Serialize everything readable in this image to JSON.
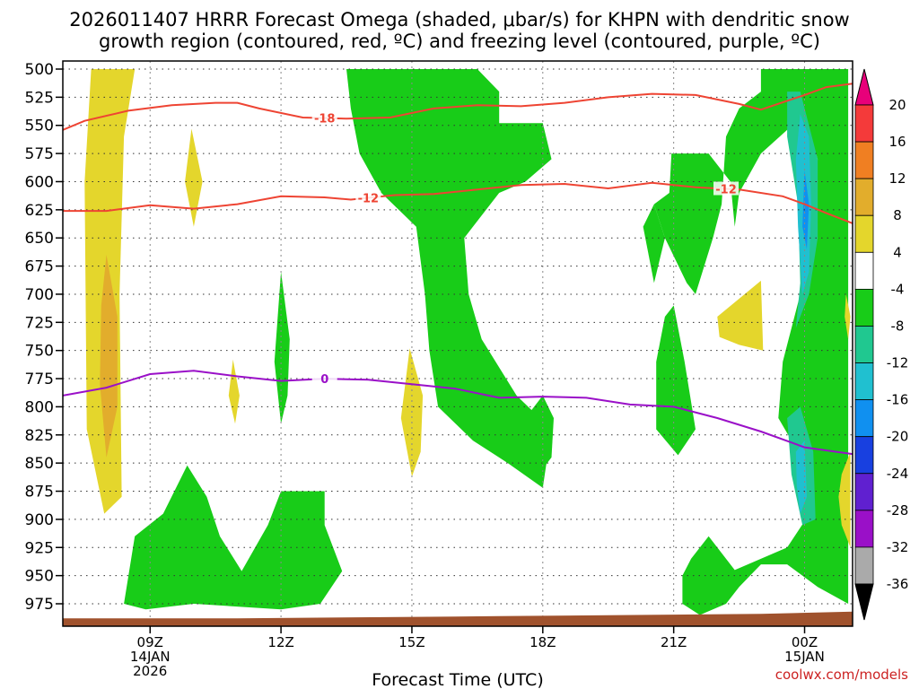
{
  "chart_data": {
    "type": "heatmap",
    "title_line1": "2026011407 HRRR Forecast Omega (shaded, μbar/s) for KHPN with dendritic snow",
    "title_line2": "growth region (contoured, red, ºC) and freezing level (contoured, purple, ºC)",
    "xlabel": "Forecast Time (UTC)",
    "x_range_hours": [
      7,
      25.1
    ],
    "x_ticks": [
      {
        "hour": 9,
        "label": "09Z",
        "sub1": "14JAN",
        "sub2": "2026"
      },
      {
        "hour": 12,
        "label": "12Z",
        "sub1": "",
        "sub2": ""
      },
      {
        "hour": 15,
        "label": "15Z",
        "sub1": "",
        "sub2": ""
      },
      {
        "hour": 18,
        "label": "18Z",
        "sub1": "",
        "sub2": ""
      },
      {
        "hour": 21,
        "label": "21Z",
        "sub1": "",
        "sub2": ""
      },
      {
        "hour": 24,
        "label": "00Z",
        "sub1": "15JAN",
        "sub2": ""
      }
    ],
    "y_levels": [
      500,
      525,
      550,
      575,
      600,
      625,
      650,
      675,
      700,
      725,
      750,
      775,
      800,
      825,
      850,
      875,
      900,
      925,
      950,
      975
    ],
    "y_tick_labels": [
      "500",
      "525",
      "550",
      "575",
      "600",
      "625",
      "650",
      "675",
      "700",
      "725",
      "750",
      "775",
      "800",
      "825",
      "850",
      "875",
      "900",
      "925",
      "950",
      "975"
    ],
    "colorbar": {
      "labels": [
        "20",
        "16",
        "12",
        "8",
        "4",
        "-4",
        "-8",
        "-12",
        "-16",
        "-20",
        "-24",
        "-28",
        "-32",
        "-36"
      ],
      "colors": [
        "#e8007a",
        "#f43a3a",
        "#f07f22",
        "#e2ad2c",
        "#e4d62c",
        "#ffffff",
        "#18cc18",
        "#20c890",
        "#20c0d0",
        "#1090f0",
        "#1840e0",
        "#6020d0",
        "#9a10c8",
        "#aaaaaa",
        "#000000"
      ]
    },
    "omega_regions": [
      {
        "color": "#e4d62c",
        "points": [
          [
            7.65,
            500
          ],
          [
            8.65,
            500
          ],
          [
            8.4,
            560
          ],
          [
            8.3,
            700
          ],
          [
            8.35,
            880
          ],
          [
            7.95,
            895
          ],
          [
            7.55,
            820
          ],
          [
            7.5,
            600
          ]
        ]
      },
      {
        "color": "#e2ad2c",
        "points": [
          [
            8.0,
            665
          ],
          [
            8.25,
            720
          ],
          [
            8.25,
            800
          ],
          [
            8.0,
            845
          ],
          [
            7.85,
            780
          ],
          [
            7.88,
            710
          ]
        ]
      },
      {
        "color": "#e4d62c",
        "points": [
          [
            9.95,
            553
          ],
          [
            10.2,
            600
          ],
          [
            10.0,
            640
          ],
          [
            9.8,
            600
          ]
        ]
      },
      {
        "color": "#e4d62c",
        "points": [
          [
            10.9,
            758
          ],
          [
            11.05,
            790
          ],
          [
            10.95,
            815
          ],
          [
            10.8,
            790
          ]
        ]
      },
      {
        "color": "#18cc18",
        "points": [
          [
            12.0,
            680
          ],
          [
            12.2,
            740
          ],
          [
            12.15,
            790
          ],
          [
            12.0,
            815
          ],
          [
            11.85,
            760
          ]
        ]
      },
      {
        "color": "#e4d62c",
        "points": [
          [
            14.95,
            748
          ],
          [
            15.25,
            790
          ],
          [
            15.2,
            840
          ],
          [
            15.0,
            862
          ],
          [
            14.75,
            810
          ]
        ]
      },
      {
        "color": "#18cc18",
        "points": [
          [
            8.4,
            975
          ],
          [
            8.65,
            915
          ],
          [
            9.3,
            895
          ],
          [
            9.85,
            852
          ],
          [
            10.3,
            880
          ],
          [
            10.6,
            915
          ],
          [
            11.1,
            946
          ],
          [
            11.7,
            905
          ],
          [
            12.0,
            875
          ],
          [
            13.0,
            875
          ],
          [
            13.0,
            905
          ],
          [
            13.4,
            946
          ],
          [
            12.9,
            975
          ],
          [
            12.0,
            980
          ],
          [
            10.0,
            975
          ],
          [
            8.9,
            980
          ]
        ]
      },
      {
        "color": "#18cc18",
        "points": [
          [
            13.5,
            500
          ],
          [
            16.5,
            500
          ],
          [
            17.0,
            520
          ],
          [
            17.0,
            548
          ],
          [
            18.0,
            548
          ],
          [
            18.2,
            580
          ],
          [
            17.6,
            600
          ],
          [
            17.0,
            610
          ],
          [
            16.2,
            650
          ],
          [
            16.3,
            700
          ],
          [
            16.6,
            740
          ],
          [
            17.4,
            790
          ],
          [
            18.2,
            820
          ],
          [
            18.0,
            872
          ],
          [
            17.2,
            850
          ],
          [
            16.4,
            830
          ],
          [
            15.6,
            800
          ],
          [
            15.4,
            750
          ],
          [
            15.3,
            700
          ],
          [
            15.1,
            640
          ],
          [
            14.3,
            610
          ],
          [
            13.8,
            575
          ],
          [
            13.6,
            535
          ]
        ]
      },
      {
        "color": "#18cc18",
        "points": [
          [
            18.0,
            790
          ],
          [
            18.25,
            810
          ],
          [
            18.2,
            845
          ],
          [
            17.9,
            860
          ],
          [
            17.6,
            810
          ]
        ]
      },
      {
        "color": "#18cc18",
        "points": [
          [
            23.0,
            500
          ],
          [
            25.0,
            500
          ],
          [
            25.0,
            975
          ],
          [
            24.3,
            960
          ],
          [
            23.6,
            940
          ],
          [
            23.0,
            940
          ],
          [
            22.5,
            960
          ],
          [
            22.2,
            975
          ],
          [
            21.6,
            985
          ],
          [
            21.2,
            975
          ],
          [
            21.2,
            950
          ],
          [
            21.4,
            935
          ],
          [
            21.8,
            915
          ],
          [
            22.4,
            945
          ],
          [
            23.6,
            925
          ],
          [
            24.2,
            890
          ],
          [
            24.0,
            850
          ],
          [
            23.4,
            810
          ],
          [
            23.5,
            760
          ],
          [
            23.9,
            700
          ],
          [
            24.2,
            640
          ],
          [
            24.3,
            580
          ],
          [
            24.0,
            540
          ],
          [
            23.0,
            575
          ],
          [
            22.5,
            610
          ],
          [
            22.4,
            640
          ],
          [
            22.3,
            600
          ],
          [
            21.8,
            575
          ],
          [
            20.95,
            575
          ],
          [
            20.9,
            610
          ],
          [
            20.55,
            620
          ],
          [
            20.8,
            650
          ],
          [
            21.3,
            690
          ],
          [
            21.5,
            700
          ],
          [
            21.9,
            650
          ],
          [
            22.1,
            620
          ],
          [
            22.2,
            560
          ],
          [
            22.5,
            535
          ],
          [
            23.0,
            520
          ]
        ]
      },
      {
        "color": "#18cc18",
        "points": [
          [
            20.55,
            620
          ],
          [
            20.8,
            650
          ],
          [
            20.55,
            690
          ],
          [
            20.3,
            640
          ]
        ]
      },
      {
        "color": "#18cc18",
        "points": [
          [
            21.0,
            710
          ],
          [
            21.25,
            760
          ],
          [
            21.5,
            820
          ],
          [
            21.1,
            843
          ],
          [
            20.6,
            820
          ],
          [
            20.6,
            760
          ],
          [
            20.8,
            720
          ]
        ]
      },
      {
        "color": "#e4d62c",
        "points": [
          [
            22.0,
            720
          ],
          [
            23.0,
            688
          ],
          [
            23.05,
            750
          ],
          [
            22.5,
            745
          ],
          [
            22.05,
            738
          ]
        ]
      },
      {
        "color": "#20c890",
        "points": [
          [
            23.6,
            520
          ],
          [
            23.9,
            520
          ],
          [
            24.3,
            580
          ],
          [
            24.3,
            650
          ],
          [
            24.1,
            700
          ],
          [
            23.8,
            730
          ],
          [
            23.9,
            690
          ],
          [
            23.85,
            620
          ],
          [
            23.6,
            560
          ]
        ]
      },
      {
        "color": "#20c0d0",
        "points": [
          [
            23.9,
            540
          ],
          [
            24.1,
            560
          ],
          [
            24.15,
            620
          ],
          [
            24.1,
            680
          ],
          [
            23.95,
            700
          ],
          [
            23.85,
            640
          ],
          [
            23.8,
            580
          ]
        ]
      },
      {
        "color": "#1090f0",
        "points": [
          [
            24.0,
            590
          ],
          [
            24.1,
            620
          ],
          [
            24.05,
            660
          ],
          [
            23.95,
            640
          ]
        ]
      },
      {
        "color": "#20c890",
        "points": [
          [
            23.6,
            810
          ],
          [
            23.9,
            800
          ],
          [
            24.2,
            840
          ],
          [
            24.25,
            900
          ],
          [
            23.95,
            905
          ],
          [
            23.7,
            860
          ]
        ]
      },
      {
        "color": "#20c0d0",
        "points": [
          [
            23.8,
            840
          ],
          [
            24.0,
            830
          ],
          [
            24.05,
            880
          ],
          [
            23.9,
            895
          ],
          [
            23.82,
            870
          ]
        ]
      },
      {
        "color": "#e4d62c",
        "points": [
          [
            24.95,
            700
          ],
          [
            25.05,
            720
          ],
          [
            25.0,
            740
          ],
          [
            24.92,
            720
          ]
        ]
      },
      {
        "color": "#e4d62c",
        "points": [
          [
            24.85,
            860
          ],
          [
            25.05,
            840
          ],
          [
            25.05,
            925
          ],
          [
            24.85,
            905
          ],
          [
            24.78,
            880
          ]
        ]
      }
    ],
    "contours": [
      {
        "name": "-18",
        "color": "#ee4433",
        "label": "-18",
        "label_hour": 13.0,
        "points": [
          [
            7.0,
            554
          ],
          [
            7.5,
            546
          ],
          [
            8.5,
            537
          ],
          [
            9.5,
            532
          ],
          [
            10.5,
            530
          ],
          [
            11.0,
            530
          ],
          [
            11.5,
            535
          ],
          [
            12.5,
            543
          ],
          [
            13.5,
            544
          ],
          [
            14.5,
            543
          ],
          [
            15.5,
            535
          ],
          [
            16.5,
            532
          ],
          [
            17.5,
            533
          ],
          [
            18.5,
            530
          ],
          [
            19.5,
            525
          ],
          [
            20.5,
            522
          ],
          [
            21.5,
            523
          ],
          [
            22.5,
            531
          ],
          [
            23.0,
            536
          ],
          [
            24.0,
            523
          ],
          [
            24.5,
            516
          ],
          [
            25.1,
            513
          ]
        ]
      },
      {
        "name": "-12",
        "color": "#ee4433",
        "label": "-12",
        "label_hour": 14.0,
        "points": [
          [
            7.0,
            626
          ],
          [
            8.0,
            626
          ],
          [
            9.0,
            621
          ],
          [
            10.0,
            624
          ],
          [
            11.0,
            620
          ],
          [
            12.0,
            613
          ],
          [
            13.0,
            614
          ],
          [
            13.6,
            616
          ],
          [
            14.6,
            612
          ],
          [
            15.5,
            611
          ],
          [
            16.5,
            607
          ],
          [
            17.5,
            603
          ],
          [
            18.5,
            602
          ],
          [
            19.5,
            606
          ],
          [
            20.5,
            601
          ],
          [
            21.5,
            605
          ],
          [
            22.5,
            607
          ],
          [
            23.5,
            613
          ],
          [
            24.0,
            620
          ],
          [
            24.5,
            628
          ],
          [
            25.1,
            637
          ]
        ]
      },
      {
        "name": "-12b",
        "color": "#ee4433",
        "label": "-12",
        "label_hour": 22.2,
        "points": []
      },
      {
        "name": "0",
        "color": "#9a10c8",
        "label": "0",
        "label_hour": 13.0,
        "points": [
          [
            7.0,
            790
          ],
          [
            8.0,
            783
          ],
          [
            9.0,
            771
          ],
          [
            10.0,
            768
          ],
          [
            11.0,
            773
          ],
          [
            12.0,
            777
          ],
          [
            13.0,
            775
          ],
          [
            14.0,
            776
          ],
          [
            15.0,
            780
          ],
          [
            16.0,
            784
          ],
          [
            17.0,
            792
          ],
          [
            18.0,
            791
          ],
          [
            19.0,
            792
          ],
          [
            20.0,
            798
          ],
          [
            21.0,
            800
          ],
          [
            22.0,
            810
          ],
          [
            23.0,
            822
          ],
          [
            24.0,
            836
          ],
          [
            25.1,
            842
          ]
        ]
      }
    ],
    "ground": {
      "color": "#a0522d",
      "points": [
        [
          7.0,
          988
        ],
        [
          11.0,
          988
        ],
        [
          17.0,
          986
        ],
        [
          23.0,
          984
        ],
        [
          25.1,
          982
        ]
      ]
    },
    "credit": "coolwx.com/models"
  }
}
